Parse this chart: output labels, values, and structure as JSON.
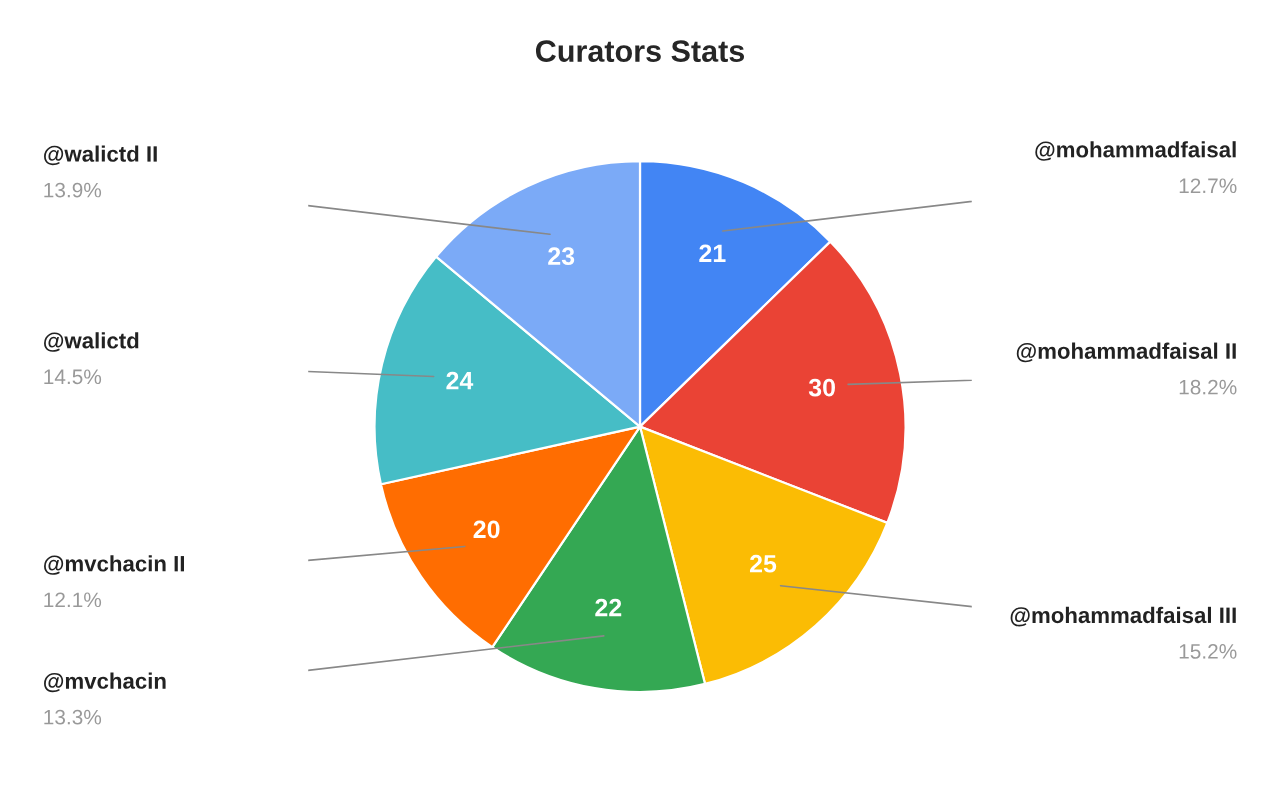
{
  "chart_data": {
    "type": "pie",
    "title": "Curators Stats",
    "categories": [
      "@mohammadfaisal",
      "@mohammadfaisal II",
      "@mohammadfaisal III",
      "@mvchacin",
      "@mvchacin II",
      "@walictd",
      "@walictd II"
    ],
    "values": [
      21,
      30,
      25,
      22,
      20,
      24,
      23
    ],
    "colors": [
      "#4285f4",
      "#ea4335",
      "#fbbc04",
      "#34a853",
      "#ff6d01",
      "#46bdc6",
      "#7baaf7"
    ],
    "data_labels": true,
    "legend": false,
    "annotations": [
      {
        "text": "12.7%",
        "x": "@mohammadfaisal"
      },
      {
        "text": "18.2%",
        "x": "@mohammadfaisal II"
      },
      {
        "text": "15.2%",
        "x": "@mohammadfaisal III"
      },
      {
        "text": "13.3%",
        "x": "@mvchacin"
      },
      {
        "text": "12.1%",
        "x": "@mvchacin II"
      },
      {
        "text": "14.5%",
        "x": "@walictd"
      },
      {
        "text": "13.9%",
        "x": "@walictd II"
      }
    ]
  }
}
